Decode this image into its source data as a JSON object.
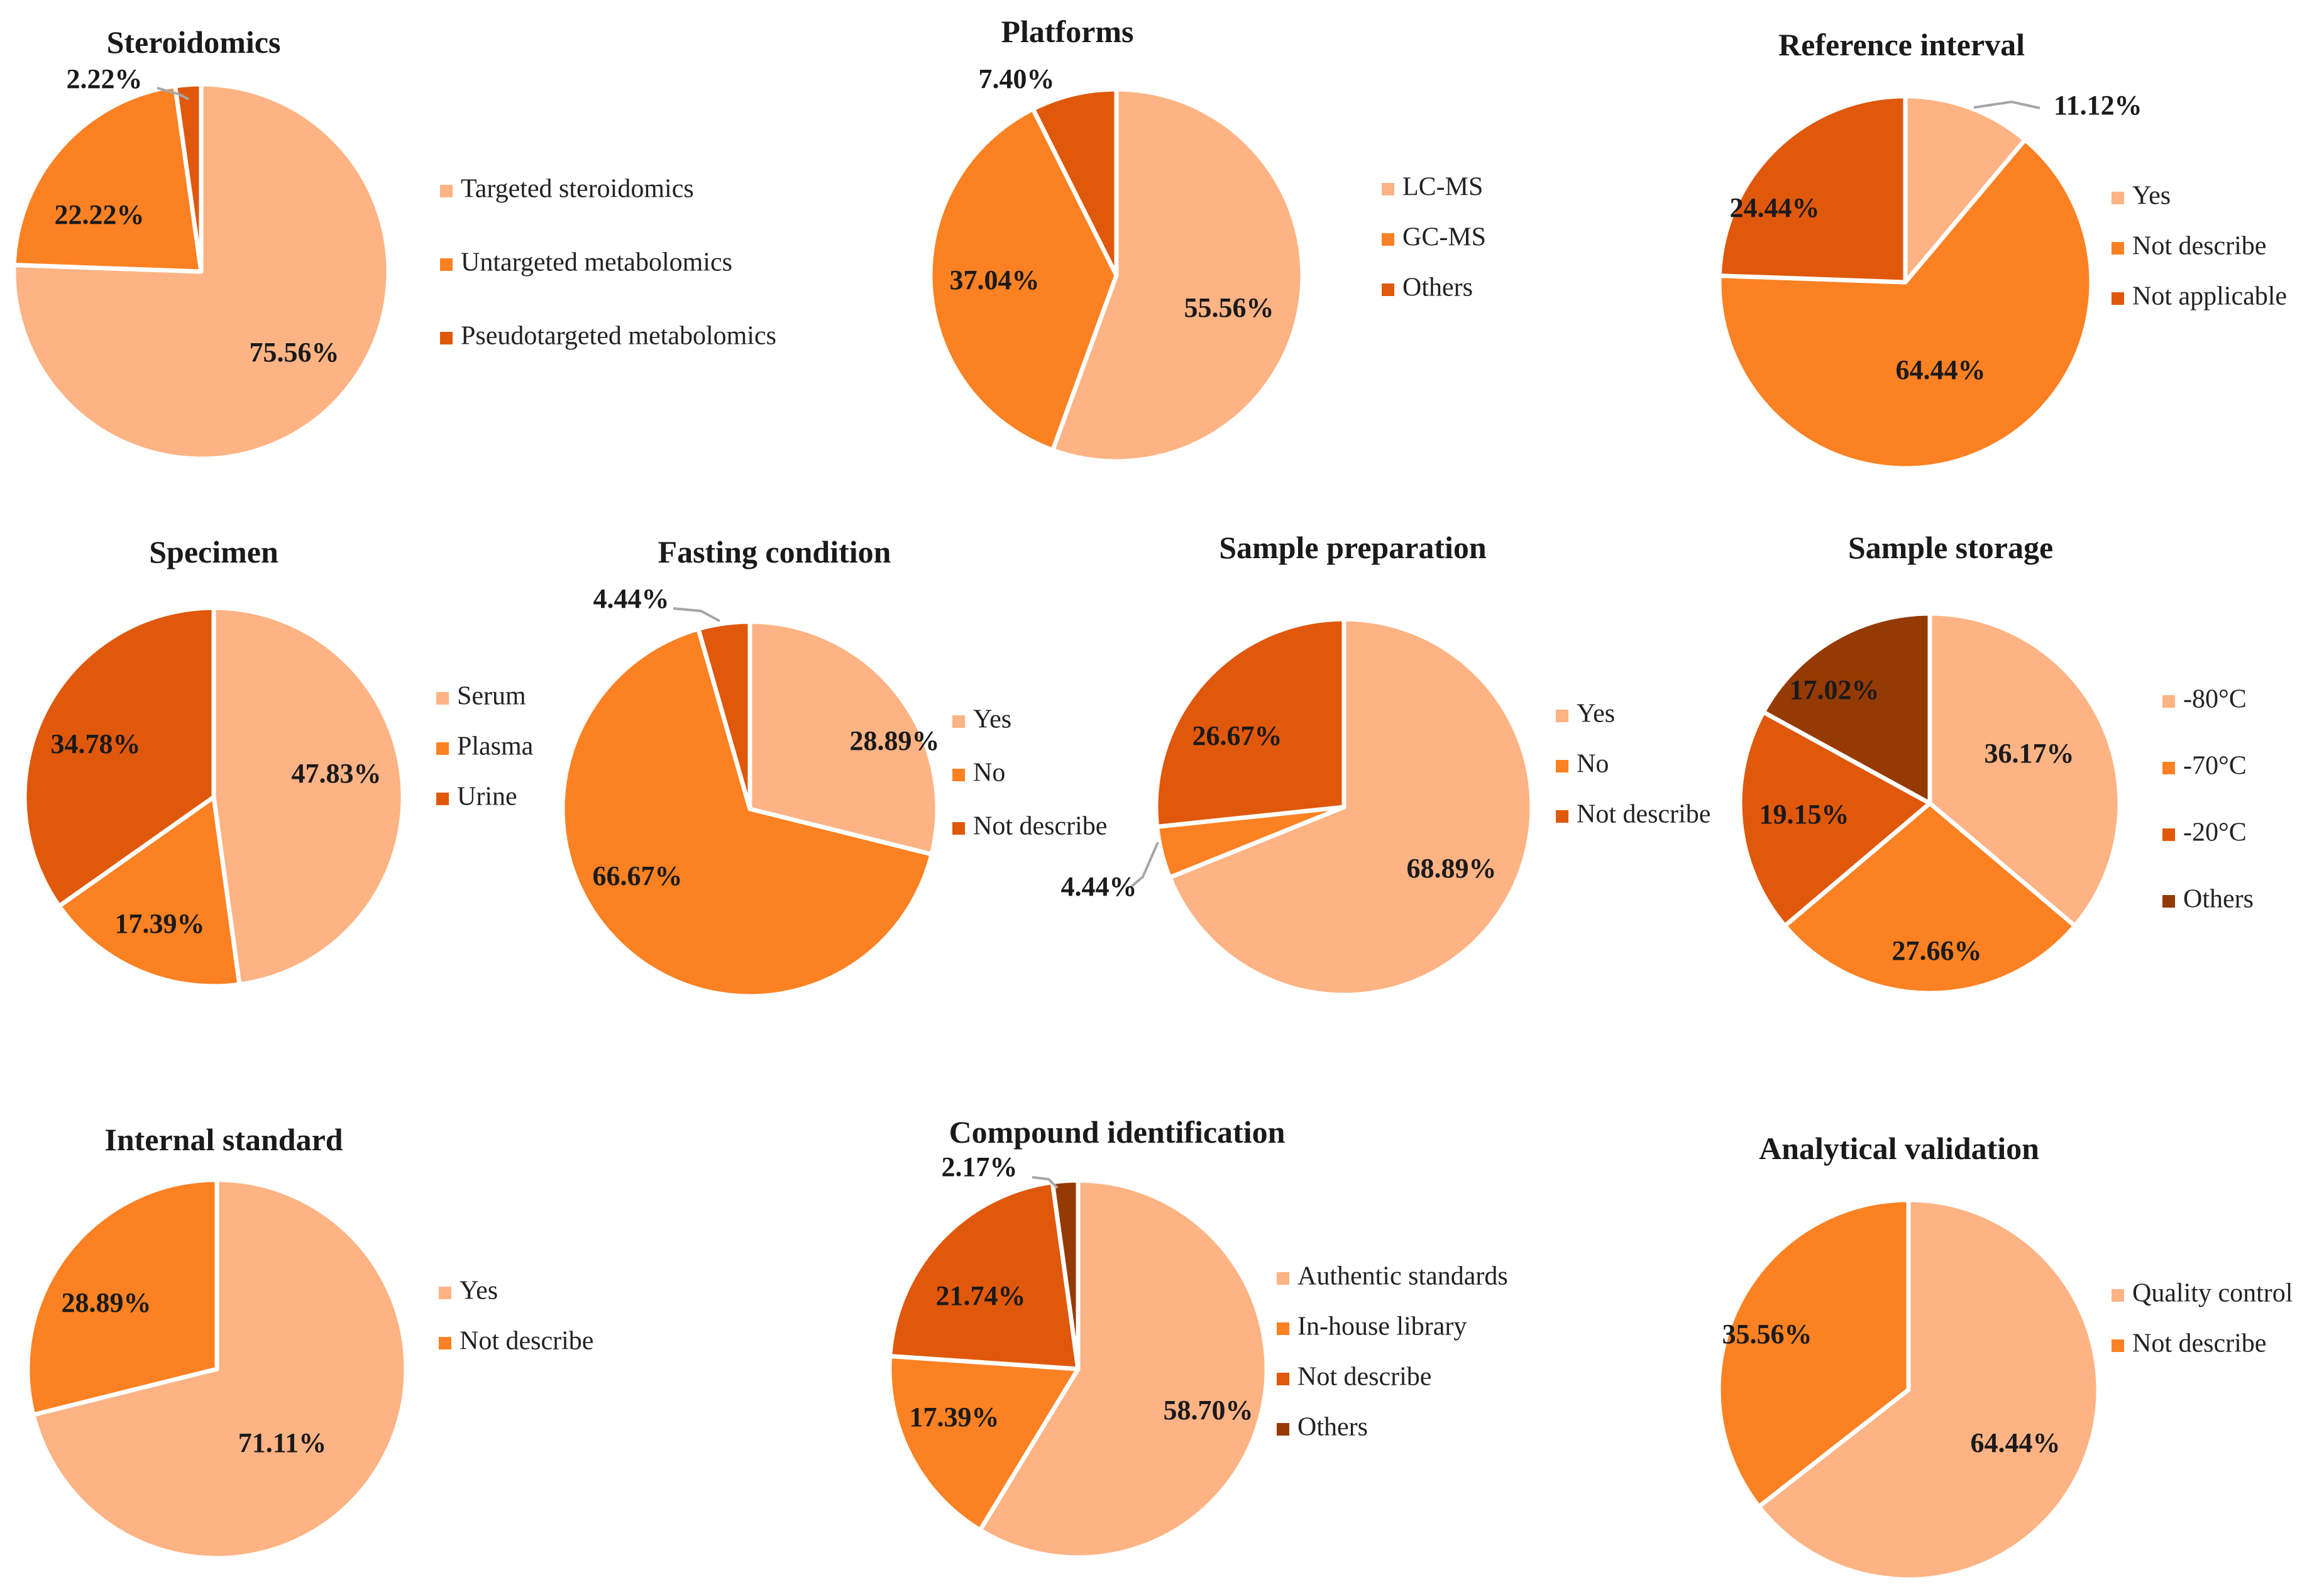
{
  "colors": {
    "light": "#FDB384",
    "orange": "#FB8123",
    "dark_orange": "#E0580B",
    "brown": "#953A03"
  },
  "chart_data": [
    {
      "type": "pie",
      "title": "Steroidomics",
      "slices": [
        {
          "label": "Targeted steroidomics",
          "value": 75.56,
          "display": "75.56%",
          "color": "#FDB384"
        },
        {
          "label": "Untargeted metabolomics",
          "value": 22.22,
          "display": "22.22%",
          "color": "#FB8123"
        },
        {
          "label": "Pseudotargeted metabolomics",
          "value": 2.22,
          "display": "2.22%",
          "color": "#E0580B"
        }
      ]
    },
    {
      "type": "pie",
      "title": "Platforms",
      "slices": [
        {
          "label": "LC-MS",
          "value": 55.56,
          "display": "55.56%",
          "color": "#FDB384"
        },
        {
          "label": "GC-MS",
          "value": 37.04,
          "display": "37.04%",
          "color": "#FB8123"
        },
        {
          "label": "Others",
          "value": 7.4,
          "display": "7.40%",
          "color": "#E0580B"
        }
      ]
    },
    {
      "type": "pie",
      "title": "Reference interval",
      "slices": [
        {
          "label": "Yes",
          "value": 11.12,
          "display": "11.12%",
          "color": "#FDB384"
        },
        {
          "label": "Not describe",
          "value": 64.44,
          "display": "64.44%",
          "color": "#FB8123"
        },
        {
          "label": "Not applicable",
          "value": 24.44,
          "display": "24.44%",
          "color": "#E0580B"
        }
      ]
    },
    {
      "type": "pie",
      "title": "Specimen",
      "slices": [
        {
          "label": "Serum",
          "value": 47.83,
          "display": "47.83%",
          "color": "#FDB384"
        },
        {
          "label": "Plasma",
          "value": 17.39,
          "display": "17.39%",
          "color": "#FB8123"
        },
        {
          "label": "Urine",
          "value": 34.78,
          "display": "34.78%",
          "color": "#E0580B"
        }
      ]
    },
    {
      "type": "pie",
      "title": "Fasting condition",
      "slices": [
        {
          "label": "Yes",
          "value": 28.89,
          "display": "28.89%",
          "color": "#FDB384"
        },
        {
          "label": "No",
          "value": 66.67,
          "display": "66.67%",
          "color": "#FB8123"
        },
        {
          "label": "Not describe",
          "value": 4.44,
          "display": "4.44%",
          "color": "#E0580B"
        }
      ]
    },
    {
      "type": "pie",
      "title": "Sample preparation",
      "slices": [
        {
          "label": "Yes",
          "value": 68.89,
          "display": "68.89%",
          "color": "#FDB384"
        },
        {
          "label": "No",
          "value": 4.44,
          "display": "4.44%",
          "color": "#FB8123"
        },
        {
          "label": "Not describe",
          "value": 26.67,
          "display": "26.67%",
          "color": "#E0580B"
        }
      ]
    },
    {
      "type": "pie",
      "title": "Sample storage",
      "slices": [
        {
          "label": "-80°C",
          "value": 36.17,
          "display": "36.17%",
          "color": "#FDB384"
        },
        {
          "label": "-70°C",
          "value": 27.66,
          "display": "27.66%",
          "color": "#FB8123"
        },
        {
          "label": "-20°C",
          "value": 19.15,
          "display": "19.15%",
          "color": "#E0580B"
        },
        {
          "label": "Others",
          "value": 17.02,
          "display": "17.02%",
          "color": "#953A03"
        }
      ]
    },
    {
      "type": "pie",
      "title": "Internal standard",
      "slices": [
        {
          "label": "Yes",
          "value": 71.11,
          "display": "71.11%",
          "color": "#FDB384"
        },
        {
          "label": "Not describe",
          "value": 28.89,
          "display": "28.89%",
          "color": "#FB8123"
        }
      ]
    },
    {
      "type": "pie",
      "title": "Compound identification",
      "slices": [
        {
          "label": "Authentic standards",
          "value": 58.7,
          "display": "58.70%",
          "color": "#FDB384"
        },
        {
          "label": "In-house library",
          "value": 17.39,
          "display": "17.39%",
          "color": "#FB8123"
        },
        {
          "label": "Not describe",
          "value": 21.74,
          "display": "21.74%",
          "color": "#E0580B"
        },
        {
          "label": "Others",
          "value": 2.17,
          "display": "2.17%",
          "color": "#953A03"
        }
      ]
    },
    {
      "type": "pie",
      "title": "Analytical validation",
      "slices": [
        {
          "label": "Quality control",
          "value": 64.44,
          "display": "64.44%",
          "color": "#FDB384"
        },
        {
          "label": "Not describe",
          "value": 35.56,
          "display": "35.56%",
          "color": "#FB8123"
        }
      ]
    }
  ]
}
